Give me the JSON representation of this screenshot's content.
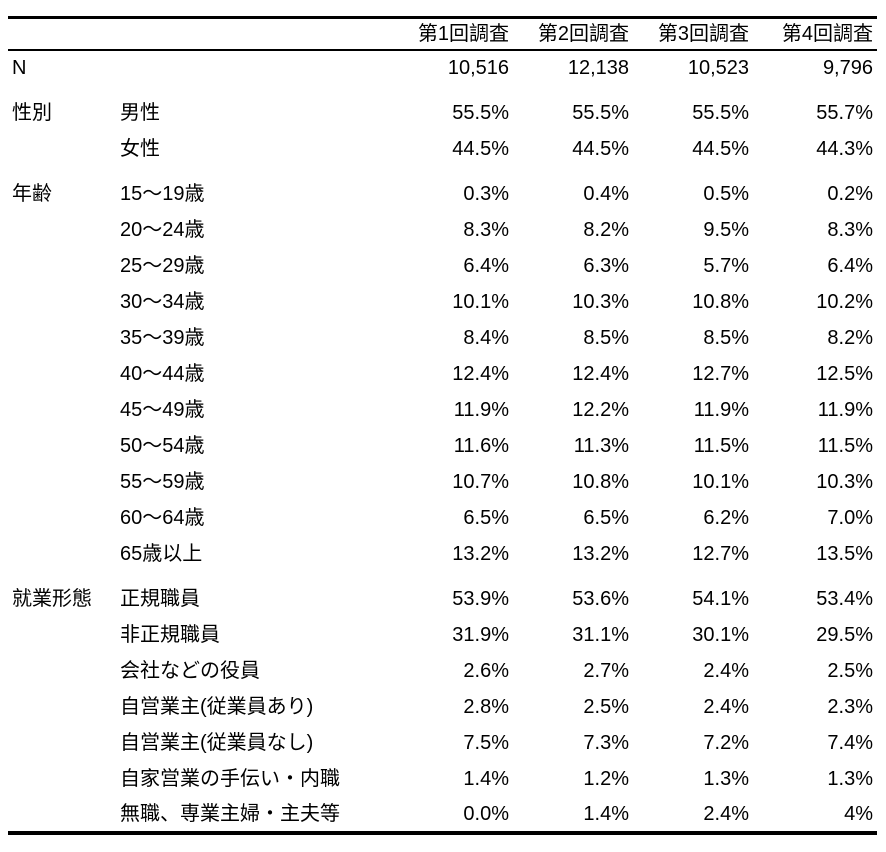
{
  "colors": {
    "background": "#ffffff",
    "text": "#000000",
    "rule": "#000000"
  },
  "table": {
    "columns": [
      "第1回調査",
      "第2回調査",
      "第3回調査",
      "第4回調査"
    ],
    "rows": [
      {
        "category": "N",
        "label": "",
        "group_start": false,
        "values": [
          "10,516",
          "12,138",
          "10,523",
          "9,796"
        ]
      },
      {
        "category": "性別",
        "label": "男性",
        "group_start": true,
        "values": [
          "55.5%",
          "55.5%",
          "55.5%",
          "55.7%"
        ]
      },
      {
        "category": "",
        "label": "女性",
        "group_start": false,
        "values": [
          "44.5%",
          "44.5%",
          "44.5%",
          "44.3%"
        ]
      },
      {
        "category": "年齢",
        "label": "15〜19歳",
        "group_start": true,
        "values": [
          "0.3%",
          "0.4%",
          "0.5%",
          "0.2%"
        ]
      },
      {
        "category": "",
        "label": "20〜24歳",
        "group_start": false,
        "values": [
          "8.3%",
          "8.2%",
          "9.5%",
          "8.3%"
        ]
      },
      {
        "category": "",
        "label": "25〜29歳",
        "group_start": false,
        "values": [
          "6.4%",
          "6.3%",
          "5.7%",
          "6.4%"
        ]
      },
      {
        "category": "",
        "label": "30〜34歳",
        "group_start": false,
        "values": [
          "10.1%",
          "10.3%",
          "10.8%",
          "10.2%"
        ]
      },
      {
        "category": "",
        "label": "35〜39歳",
        "group_start": false,
        "values": [
          "8.4%",
          "8.5%",
          "8.5%",
          "8.2%"
        ]
      },
      {
        "category": "",
        "label": "40〜44歳",
        "group_start": false,
        "values": [
          "12.4%",
          "12.4%",
          "12.7%",
          "12.5%"
        ]
      },
      {
        "category": "",
        "label": "45〜49歳",
        "group_start": false,
        "values": [
          "11.9%",
          "12.2%",
          "11.9%",
          "11.9%"
        ]
      },
      {
        "category": "",
        "label": "50〜54歳",
        "group_start": false,
        "values": [
          "11.6%",
          "11.3%",
          "11.5%",
          "11.5%"
        ]
      },
      {
        "category": "",
        "label": "55〜59歳",
        "group_start": false,
        "values": [
          "10.7%",
          "10.8%",
          "10.1%",
          "10.3%"
        ]
      },
      {
        "category": "",
        "label": "60〜64歳",
        "group_start": false,
        "values": [
          "6.5%",
          "6.5%",
          "6.2%",
          "7.0%"
        ]
      },
      {
        "category": "",
        "label": "65歳以上",
        "group_start": false,
        "values": [
          "13.2%",
          "13.2%",
          "12.7%",
          "13.5%"
        ]
      },
      {
        "category": "就業形態",
        "label": "正規職員",
        "group_start": true,
        "values": [
          "53.9%",
          "53.6%",
          "54.1%",
          "53.4%"
        ]
      },
      {
        "category": "",
        "label": "非正規職員",
        "group_start": false,
        "values": [
          "31.9%",
          "31.1%",
          "30.1%",
          "29.5%"
        ]
      },
      {
        "category": "",
        "label": "会社などの役員",
        "group_start": false,
        "values": [
          "2.6%",
          "2.7%",
          "2.4%",
          "2.5%"
        ]
      },
      {
        "category": "",
        "label": "自営業主(従業員あり)",
        "group_start": false,
        "values": [
          "2.8%",
          "2.5%",
          "2.4%",
          "2.3%"
        ]
      },
      {
        "category": "",
        "label": "自営業主(従業員なし)",
        "group_start": false,
        "values": [
          "7.5%",
          "7.3%",
          "7.2%",
          "7.4%"
        ]
      },
      {
        "category": "",
        "label": "自家営業の手伝い・内職",
        "group_start": false,
        "values": [
          "1.4%",
          "1.2%",
          "1.3%",
          "1.3%"
        ]
      },
      {
        "category": "",
        "label": "無職、専業主婦・主夫等",
        "group_start": false,
        "values": [
          "0.0%",
          "1.4%",
          "2.4%",
          "4%"
        ]
      }
    ]
  }
}
